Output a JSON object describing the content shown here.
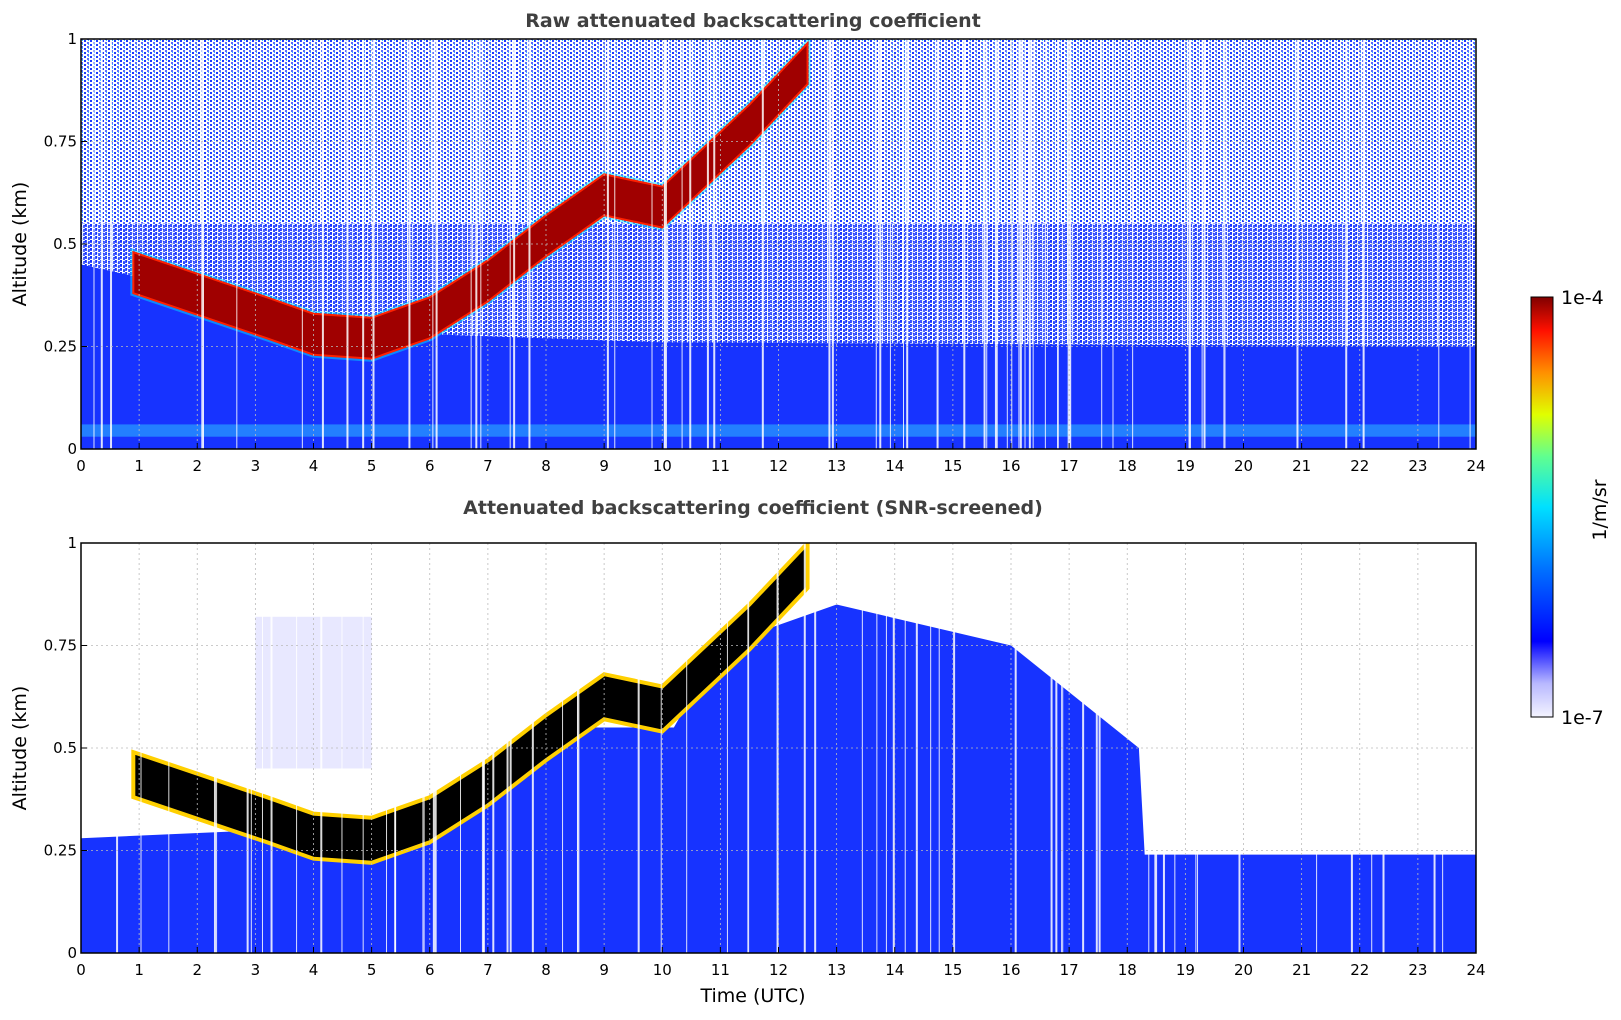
{
  "chart_data": [
    {
      "type": "heatmap",
      "title": "Raw attenuated backscattering coefficient",
      "xlabel": "",
      "ylabel": "Altitude (km)",
      "xlim": [
        0,
        24
      ],
      "ylim": [
        0,
        1
      ],
      "xticks": [
        "0",
        "1",
        "2",
        "3",
        "4",
        "5",
        "6",
        "7",
        "8",
        "9",
        "10",
        "11",
        "12",
        "13",
        "14",
        "15",
        "16",
        "17",
        "18",
        "19",
        "20",
        "21",
        "22",
        "23",
        "24"
      ],
      "yticks": [
        "0",
        "0.25",
        "0.5",
        "0.75",
        "1"
      ],
      "grid": true,
      "features": {
        "aerosol_layer_top_km": 0.45,
        "cloud_layer_path": [
          {
            "t": 0.9,
            "alt": 0.44
          },
          {
            "t": 3.2,
            "alt": 0.33
          },
          {
            "t": 4.0,
            "alt": 0.29
          },
          {
            "t": 5.0,
            "alt": 0.28
          },
          {
            "t": 6.0,
            "alt": 0.33
          },
          {
            "t": 7.0,
            "alt": 0.42
          },
          {
            "t": 8.0,
            "alt": 0.53
          },
          {
            "t": 9.0,
            "alt": 0.63
          },
          {
            "t": 10.0,
            "alt": 0.6
          },
          {
            "t": 11.5,
            "alt": 0.8
          },
          {
            "t": 12.5,
            "alt": 0.95
          }
        ]
      }
    },
    {
      "type": "heatmap",
      "title": "Attenuated backscattering coefficient (SNR-screened)",
      "xlabel": "Time (UTC)",
      "ylabel": "Altitude (km)",
      "xlim": [
        0,
        24
      ],
      "ylim": [
        0,
        1
      ],
      "xticks": [
        "0",
        "1",
        "2",
        "3",
        "4",
        "5",
        "6",
        "7",
        "8",
        "9",
        "10",
        "11",
        "12",
        "13",
        "14",
        "15",
        "16",
        "17",
        "18",
        "19",
        "20",
        "21",
        "22",
        "23",
        "24"
      ],
      "yticks": [
        "0",
        "0.25",
        "0.5",
        "0.75",
        "1"
      ],
      "grid": true,
      "features": {
        "screened_top_km_start": 0.28,
        "screened_top_km_end": 0.24
      }
    }
  ],
  "colorbar": {
    "label": "1/m/sr",
    "min_label": "1e-7",
    "max_label": "1e-4",
    "colormap": "jet (white at low end)",
    "colors": [
      "#f0f0ff",
      "#c8c8ff",
      "#0000ff",
      "#0080ff",
      "#00ffff",
      "#80ff80",
      "#ffff00",
      "#ff8000",
      "#ff0000",
      "#800000"
    ]
  }
}
